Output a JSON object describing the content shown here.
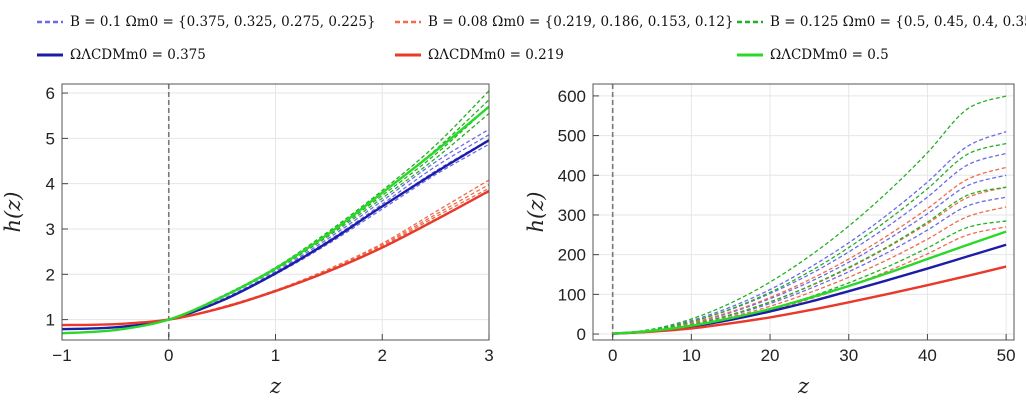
{
  "legend": {
    "entries": [
      {
        "text": "B = 0.1   Ωm0 = {0.375, 0.325, 0.275, 0.225}",
        "color": "#6b6be8",
        "style": "dashed"
      },
      {
        "text": "B = 0.08   Ωm0 = {0.219, 0.186, 0.153, 0.12}",
        "color": "#ef6b4a",
        "style": "dashed"
      },
      {
        "text": "B = 0.125   Ωm0 = {0.5, 0.45, 0.4, 0.35}",
        "color": "#22b022",
        "style": "dashed"
      },
      {
        "text": "ΩΛCDMm0 = 0.375",
        "color": "#1c1ca8",
        "style": "solid"
      },
      {
        "text": "ΩΛCDMm0 = 0.219",
        "color": "#e8392a",
        "style": "solid"
      },
      {
        "text": "ΩΛCDMm0 = 0.5",
        "color": "#29d829",
        "style": "solid"
      }
    ]
  },
  "chart_data": [
    {
      "type": "line",
      "xlabel": "z",
      "ylabel": "h(z)",
      "xlim": [
        -1,
        3
      ],
      "ylim": [
        0.55,
        6.2
      ],
      "xticks": [
        "-1",
        "0",
        "1",
        "2",
        "3"
      ],
      "xtick_values": [
        -1,
        0,
        1,
        2,
        3
      ],
      "yticks": [
        "1",
        "2",
        "3",
        "4",
        "5",
        "6"
      ],
      "ytick_values": [
        1,
        2,
        3,
        4,
        5,
        6
      ],
      "reference_line_x": 0,
      "grid": true,
      "x": [
        -1,
        -0.5,
        0,
        0.5,
        1,
        1.5,
        2,
        2.5,
        3
      ],
      "series": [
        {
          "group": "B = 0.1",
          "style": "dashed",
          "color": "#6b6be8",
          "values": [
            0.79,
            0.83,
            1.0,
            1.45,
            2.06,
            2.8,
            3.62,
            4.48,
            5.2
          ]
        },
        {
          "group": "B = 0.1",
          "style": "dashed",
          "color": "#6b6be8",
          "values": [
            0.79,
            0.83,
            1.0,
            1.44,
            2.04,
            2.75,
            3.55,
            4.38,
            5.08
          ]
        },
        {
          "group": "B = 0.1",
          "style": "dashed",
          "color": "#6b6be8",
          "values": [
            0.79,
            0.83,
            1.0,
            1.43,
            2.02,
            2.72,
            3.5,
            4.28,
            4.97
          ]
        },
        {
          "group": "B = 0.1",
          "style": "dashed",
          "color": "#6b6be8",
          "values": [
            0.79,
            0.83,
            1.0,
            1.42,
            2.0,
            2.68,
            3.44,
            4.2,
            4.87
          ]
        },
        {
          "group": "B = 0.08",
          "style": "dashed",
          "color": "#ef6b4a",
          "values": [
            0.88,
            0.9,
            1.0,
            1.28,
            1.65,
            2.12,
            2.68,
            3.38,
            4.08
          ]
        },
        {
          "group": "B = 0.08",
          "style": "dashed",
          "color": "#ef6b4a",
          "values": [
            0.88,
            0.9,
            1.0,
            1.27,
            1.64,
            2.1,
            2.65,
            3.32,
            3.98
          ]
        },
        {
          "group": "B = 0.08",
          "style": "dashed",
          "color": "#ef6b4a",
          "values": [
            0.88,
            0.9,
            1.0,
            1.27,
            1.63,
            2.08,
            2.62,
            3.27,
            3.9
          ]
        },
        {
          "group": "B = 0.08",
          "style": "dashed",
          "color": "#ef6b4a",
          "values": [
            0.88,
            0.9,
            1.0,
            1.26,
            1.62,
            2.06,
            2.59,
            3.22,
            3.82
          ]
        },
        {
          "group": "B = 0.125",
          "style": "dashed",
          "color": "#22b022",
          "values": [
            0.7,
            0.77,
            1.0,
            1.52,
            2.15,
            2.95,
            3.85,
            4.85,
            6.05
          ]
        },
        {
          "group": "B = 0.125",
          "style": "dashed",
          "color": "#22b022",
          "values": [
            0.7,
            0.77,
            1.0,
            1.51,
            2.13,
            2.92,
            3.8,
            4.75,
            5.85
          ]
        },
        {
          "group": "B = 0.125",
          "style": "dashed",
          "color": "#22b022",
          "values": [
            0.7,
            0.77,
            1.0,
            1.5,
            2.12,
            2.88,
            3.74,
            4.65,
            5.7
          ]
        },
        {
          "group": "B = 0.125",
          "style": "dashed",
          "color": "#22b022",
          "values": [
            0.7,
            0.77,
            1.0,
            1.49,
            2.1,
            2.85,
            3.68,
            4.56,
            5.55
          ]
        },
        {
          "group": "ΛCDM 0.375",
          "style": "solid",
          "color": "#1c1ca8",
          "values": [
            0.79,
            0.83,
            1.0,
            1.42,
            2.02,
            2.72,
            3.5,
            4.25,
            4.96
          ]
        },
        {
          "group": "ΛCDM 0.219",
          "style": "solid",
          "color": "#e8392a",
          "values": [
            0.88,
            0.9,
            1.0,
            1.26,
            1.63,
            2.07,
            2.59,
            3.2,
            3.84
          ]
        },
        {
          "group": "ΛCDM 0.5",
          "style": "solid",
          "color": "#29d829",
          "values": [
            0.7,
            0.77,
            1.0,
            1.5,
            2.13,
            2.9,
            3.8,
            4.72,
            5.7
          ]
        }
      ]
    },
    {
      "type": "line",
      "xlabel": "z",
      "ylabel": "h(z)",
      "xlim": [
        -2.5,
        51
      ],
      "ylim": [
        -15,
        630
      ],
      "xticks": [
        "0",
        "10",
        "20",
        "30",
        "40",
        "50"
      ],
      "xtick_values": [
        0,
        10,
        20,
        30,
        40,
        50
      ],
      "yticks": [
        "0",
        "100",
        "200",
        "300",
        "400",
        "500",
        "600"
      ],
      "ytick_values": [
        0,
        100,
        200,
        300,
        400,
        500,
        600
      ],
      "reference_line_x": 0,
      "grid": true,
      "x": [
        0,
        5,
        10,
        15,
        20,
        25,
        30,
        35,
        40,
        45,
        50
      ],
      "end_values": {
        "B = 0.1": [
          510,
          455,
          400,
          345
        ],
        "B = 0.08": [
          420,
          370,
          320,
          270
        ],
        "B = 0.125": [
          600,
          480,
          370,
          285
        ],
        "ΛCDM 0.375": 225,
        "ΛCDM 0.219": 170,
        "ΛCDM 0.5": 258
      },
      "series": [
        {
          "group": "B = 0.1",
          "style": "dashed",
          "color": "#6b6be8",
          "values": [
            1,
            11,
            34,
            68,
            112,
            167,
            230,
            302,
            383,
            472,
            510
          ]
        },
        {
          "group": "B = 0.1",
          "style": "dashed",
          "color": "#6b6be8",
          "values": [
            1,
            10,
            31,
            62,
            102,
            150,
            207,
            272,
            345,
            425,
            455
          ]
        },
        {
          "group": "B = 0.1",
          "style": "dashed",
          "color": "#6b6be8",
          "values": [
            1,
            9,
            27,
            54,
            89,
            131,
            181,
            239,
            303,
            373,
            400
          ]
        },
        {
          "group": "B = 0.1",
          "style": "dashed",
          "color": "#6b6be8",
          "values": [
            1,
            8,
            24,
            47,
            77,
            114,
            157,
            206,
            262,
            322,
            345
          ]
        },
        {
          "group": "B = 0.08",
          "style": "dashed",
          "color": "#ef6b4a",
          "values": [
            1,
            9,
            28,
            56,
            92,
            137,
            189,
            249,
            316,
            389,
            420
          ]
        },
        {
          "group": "B = 0.08",
          "style": "dashed",
          "color": "#ef6b4a",
          "values": [
            1,
            8,
            25,
            49,
            81,
            120,
            166,
            219,
            278,
            343,
            370
          ]
        },
        {
          "group": "B = 0.08",
          "style": "dashed",
          "color": "#ef6b4a",
          "values": [
            1,
            7,
            21,
            43,
            70,
            104,
            143,
            188,
            239,
            295,
            320
          ]
        },
        {
          "group": "B = 0.08",
          "style": "dashed",
          "color": "#ef6b4a",
          "values": [
            1,
            6,
            18,
            36,
            59,
            88,
            121,
            159,
            202,
            249,
            270
          ]
        },
        {
          "group": "B = 0.125",
          "style": "dashed",
          "color": "#22b022",
          "values": [
            1,
            12,
            38,
            78,
            131,
            196,
            272,
            359,
            457,
            566,
            600
          ]
        },
        {
          "group": "B = 0.125",
          "style": "dashed",
          "color": "#22b022",
          "values": [
            1,
            10,
            31,
            63,
            105,
            157,
            218,
            288,
            366,
            452,
            480
          ]
        },
        {
          "group": "B = 0.125",
          "style": "dashed",
          "color": "#22b022",
          "values": [
            1,
            8,
            24,
            48,
            81,
            121,
            168,
            221,
            282,
            349,
            370
          ]
        },
        {
          "group": "B = 0.125",
          "style": "dashed",
          "color": "#22b022",
          "values": [
            1,
            6,
            18,
            37,
            62,
            93,
            129,
            170,
            217,
            268,
            285
          ]
        },
        {
          "group": "ΛCDM 0.375",
          "style": "solid",
          "color": "#1c1ca8",
          "values": [
            1,
            7,
            19,
            36,
            57,
            81,
            108,
            136,
            165,
            195,
            225
          ]
        },
        {
          "group": "ΛCDM 0.219",
          "style": "solid",
          "color": "#e8392a",
          "values": [
            1,
            6,
            14,
            27,
            42,
            60,
            80,
            101,
            123,
            146,
            170
          ]
        },
        {
          "group": "ΛCDM 0.5",
          "style": "solid",
          "color": "#29d829",
          "values": [
            1,
            8,
            21,
            40,
            63,
            91,
            121,
            154,
            189,
            224,
            258
          ]
        }
      ]
    }
  ]
}
